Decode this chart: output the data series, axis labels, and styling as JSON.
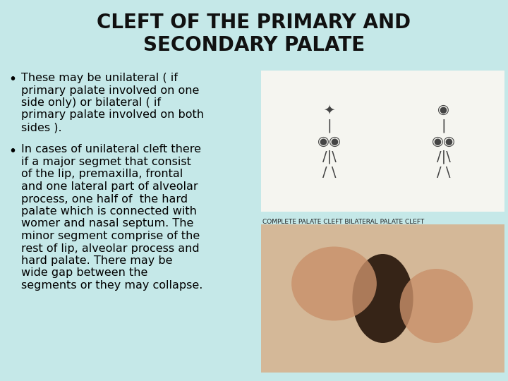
{
  "title_line1": "CLEFT OF THE PRIMARY AND",
  "title_line2": "SECONDARY PALATE",
  "background_color": "#c5e8e8",
  "title_color": "#111111",
  "title_fontsize": 20,
  "text_fontsize": 11.5,
  "text_color": "#000000",
  "bullet1_lines": [
    "These may be unilateral ( if",
    "primary palate involved on one",
    "side only) or bilateral ( if",
    "primary palate involved on both",
    "sides )."
  ],
  "bullet2_lines": [
    "In cases of unilateral cleft there",
    "if a major segmet that consist",
    "of the lip, premaxilla, frontal",
    "and one lateral part of alveolar",
    "process, one half of  the hard",
    "palate which is connected with",
    "womer and nasal septum. The",
    "minor segment comprise of the",
    "rest of lip, alveolar process and",
    "hard palate. There may be",
    "wide gap between the",
    "segments or they may collapse."
  ],
  "img1_label": "COMPLETE PALATE CLEFT BILATERAL PALATE CLEFT",
  "img1_label_fontsize": 6.5,
  "img1_bg": "#f5f5f0",
  "img2_bg": "#c4a882"
}
